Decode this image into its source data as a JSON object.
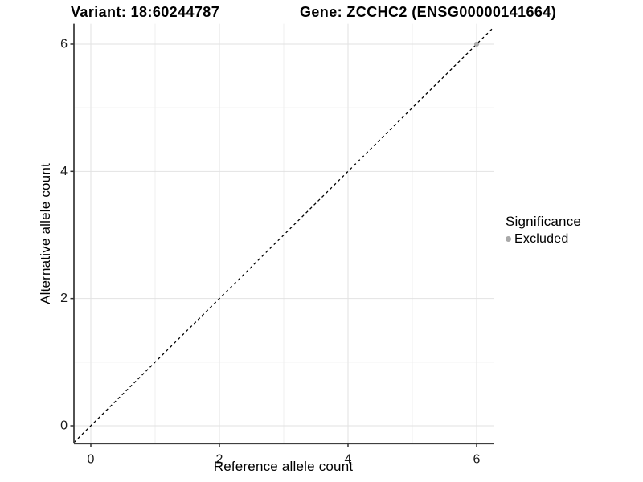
{
  "chart_data": {
    "type": "scatter",
    "title_left": "Variant: 18:60244787",
    "title_right": "Gene: ZCCHC2 (ENSG00000141664)",
    "xlabel": "Reference allele count",
    "ylabel": "Alternative allele count",
    "xlim": [
      -0.2625,
      6.2625
    ],
    "ylim": [
      -0.28,
      6.32
    ],
    "xticks": [
      0,
      2,
      4,
      6
    ],
    "yticks": [
      0,
      2,
      4,
      6
    ],
    "xticks_minor": [
      1,
      3,
      5
    ],
    "yticks_minor": [
      1,
      3,
      5
    ],
    "grid": true,
    "identity_line": {
      "style": "dashed",
      "slope": 1,
      "intercept": 0,
      "color": "#000000"
    },
    "series": [
      {
        "name": "Excluded",
        "color": "#a9a9a9",
        "points": [
          {
            "x": 6,
            "y": 6
          }
        ]
      }
    ],
    "legend": {
      "position": "right",
      "title": "Significance",
      "items": [
        {
          "label": "Excluded",
          "color": "#a9a9a9"
        }
      ]
    }
  },
  "colors": {
    "background": "#ffffff",
    "axis_line": "#3f3f3f",
    "tick_mark": "#333333",
    "tick_text": "#1a1a1a",
    "grid_major": "#e2e2e2",
    "grid_minor": "#efefef",
    "title_text": "#000000"
  }
}
